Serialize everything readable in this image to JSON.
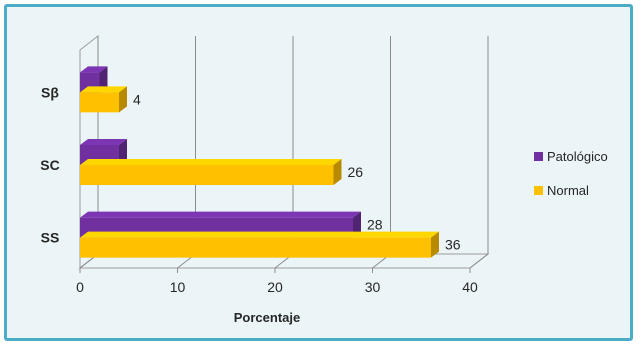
{
  "chart_data": {
    "type": "bar",
    "orientation": "horizontal",
    "three_d": true,
    "categories": [
      "Sβ",
      "SC",
      "SS"
    ],
    "series": [
      {
        "name": "Patológico",
        "color": "#7030a0",
        "values": [
          2,
          4,
          28
        ]
      },
      {
        "name": "Normal",
        "color": "#ffc000",
        "values": [
          4,
          26,
          36
        ]
      }
    ],
    "value_labels": [
      {
        "series": "Normal",
        "category": "Sβ",
        "text": "4"
      },
      {
        "series": "Normal",
        "category": "SC",
        "text": "26"
      },
      {
        "series": "Patológico",
        "category": "SS",
        "text": "28"
      },
      {
        "series": "Normal",
        "category": "SS",
        "text": "36"
      }
    ],
    "xlabel": "Porcentaje",
    "xlim": [
      0,
      40
    ],
    "xticks": [
      "0",
      "10",
      "20",
      "30",
      "40"
    ],
    "grid": true,
    "legend_position": "right"
  }
}
